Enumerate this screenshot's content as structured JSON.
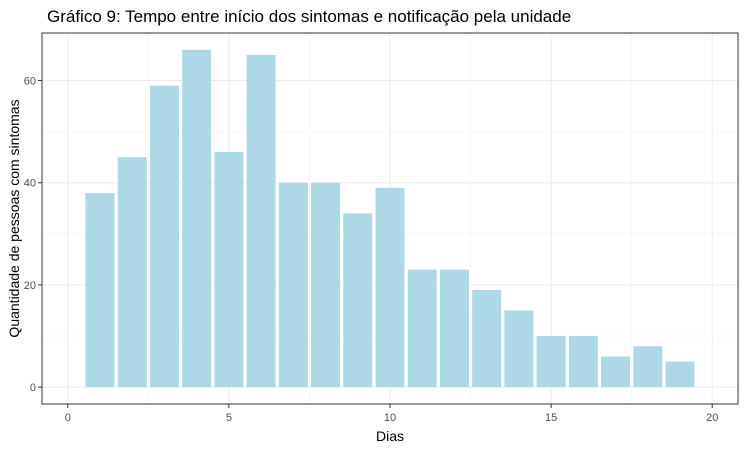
{
  "chart_data": {
    "type": "bar",
    "title": "Gráfico 9: Tempo entre início dos sintomas e notificação pela unidade",
    "xlabel": "Dias",
    "ylabel": "Quantidade de pessoas com sintomas",
    "x": [
      1,
      2,
      3,
      4,
      5,
      6,
      7,
      8,
      9,
      10,
      11,
      12,
      13,
      14,
      15,
      16,
      17,
      18,
      19
    ],
    "values": [
      38,
      45,
      59,
      66,
      46,
      65,
      40,
      40,
      34,
      39,
      23,
      23,
      19,
      15,
      10,
      10,
      6,
      8,
      5
    ],
    "xlim": [
      -0.8,
      20.8
    ],
    "ylim": [
      -3.3,
      69.3
    ],
    "xticks": [
      0,
      5,
      10,
      15,
      20
    ],
    "yticks": [
      0,
      20,
      40,
      60
    ],
    "xtick_labels": [
      "0",
      "5",
      "10",
      "15",
      "20"
    ],
    "ytick_labels": [
      "0",
      "20",
      "40",
      "60"
    ],
    "bar_color": "#add8e6",
    "grid": true,
    "legend": "none"
  }
}
